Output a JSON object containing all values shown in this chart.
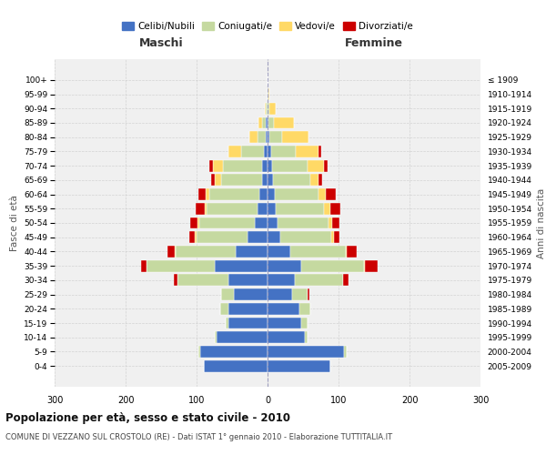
{
  "age_groups": [
    "0-4",
    "5-9",
    "10-14",
    "15-19",
    "20-24",
    "25-29",
    "30-34",
    "35-39",
    "40-44",
    "45-49",
    "50-54",
    "55-59",
    "60-64",
    "65-69",
    "70-74",
    "75-79",
    "80-84",
    "85-89",
    "90-94",
    "95-99",
    "100+"
  ],
  "birth_years": [
    "2005-2009",
    "2000-2004",
    "1995-1999",
    "1990-1994",
    "1985-1989",
    "1980-1984",
    "1975-1979",
    "1970-1974",
    "1965-1969",
    "1960-1964",
    "1955-1959",
    "1950-1954",
    "1945-1949",
    "1940-1944",
    "1935-1939",
    "1930-1934",
    "1925-1929",
    "1920-1924",
    "1915-1919",
    "1910-1914",
    "≤ 1909"
  ],
  "maschi": {
    "celibi": [
      90,
      95,
      72,
      55,
      55,
      48,
      55,
      75,
      45,
      28,
      18,
      14,
      12,
      8,
      8,
      5,
      2,
      3,
      0,
      0,
      0
    ],
    "coniugati": [
      0,
      2,
      3,
      4,
      12,
      18,
      72,
      95,
      85,
      72,
      78,
      72,
      70,
      58,
      55,
      32,
      12,
      5,
      2,
      0,
      0
    ],
    "vedovi": [
      0,
      0,
      0,
      0,
      0,
      0,
      0,
      0,
      1,
      2,
      3,
      3,
      5,
      8,
      14,
      18,
      12,
      5,
      2,
      0,
      0
    ],
    "divorziati": [
      0,
      0,
      0,
      0,
      0,
      0,
      5,
      8,
      10,
      8,
      10,
      12,
      10,
      5,
      5,
      0,
      0,
      0,
      0,
      0,
      0
    ]
  },
  "femmine": {
    "nubili": [
      88,
      108,
      52,
      48,
      45,
      35,
      38,
      48,
      32,
      18,
      14,
      12,
      10,
      8,
      7,
      5,
      2,
      1,
      0,
      0,
      0
    ],
    "coniugate": [
      0,
      3,
      5,
      8,
      15,
      22,
      68,
      88,
      78,
      72,
      72,
      68,
      62,
      52,
      50,
      35,
      18,
      8,
      3,
      1,
      0
    ],
    "vedove": [
      0,
      0,
      0,
      0,
      0,
      0,
      0,
      1,
      2,
      3,
      5,
      8,
      10,
      12,
      22,
      32,
      38,
      28,
      8,
      2,
      0
    ],
    "divorziate": [
      0,
      0,
      0,
      0,
      0,
      2,
      8,
      18,
      14,
      8,
      10,
      14,
      14,
      5,
      5,
      3,
      0,
      0,
      0,
      0,
      0
    ]
  },
  "colors": {
    "celibi_nubili": "#4472c4",
    "coniugati": "#c5d9a0",
    "vedovi": "#ffd966",
    "divorziati": "#cc0000"
  },
  "xlim": 300,
  "title": "Popolazione per età, sesso e stato civile - 2010",
  "subtitle": "COMUNE DI VEZZANO SUL CROSTOLO (RE) - Dati ISTAT 1° gennaio 2010 - Elaborazione TUTTITALIA.IT",
  "xlabel_left": "Maschi",
  "xlabel_right": "Femmine",
  "ylabel_left": "Fasce di età",
  "ylabel_right": "Anni di nascita",
  "legend_labels": [
    "Celibi/Nubili",
    "Coniugati/e",
    "Vedovi/e",
    "Divorziati/e"
  ],
  "bg_color": "#ffffff",
  "plot_bg": "#f0f0f0",
  "grid_color": "#cccccc"
}
